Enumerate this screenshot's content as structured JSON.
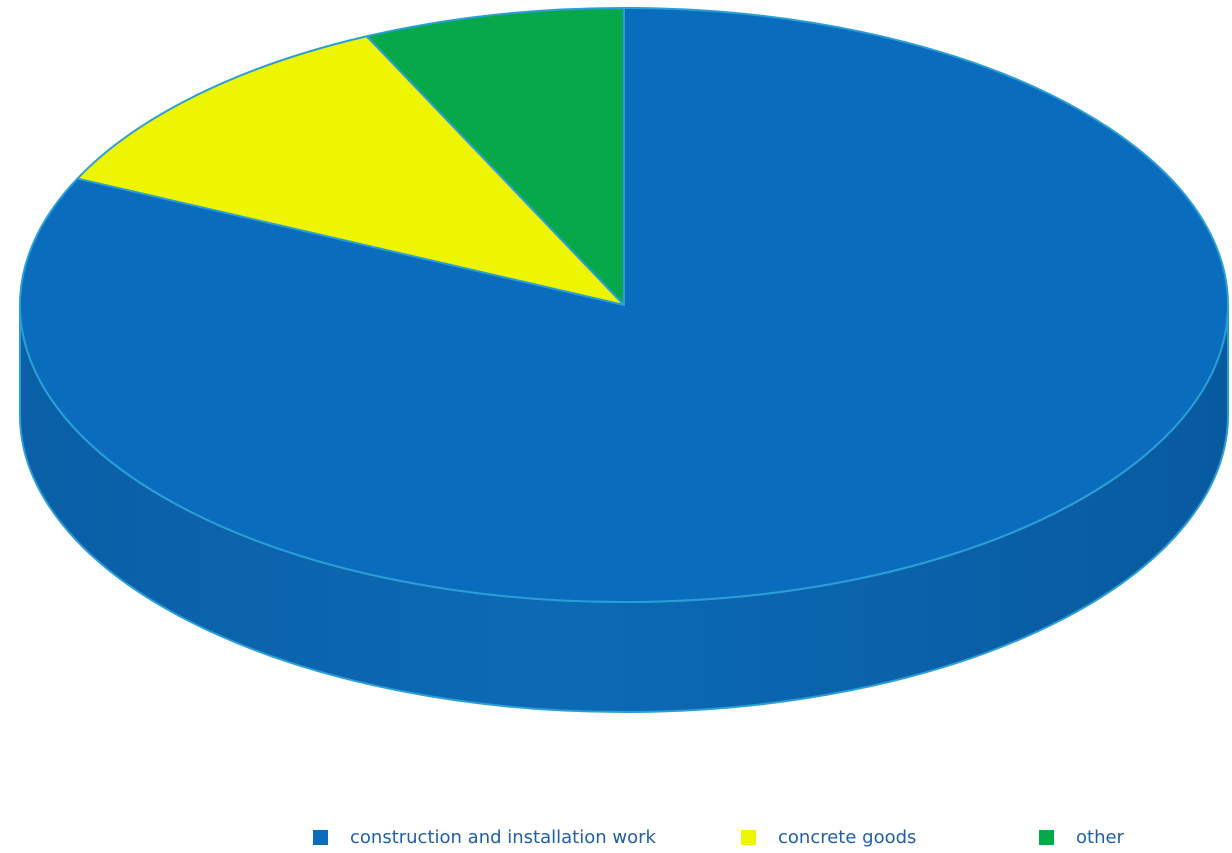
{
  "chart_data": {
    "type": "pie",
    "three_d": true,
    "title": "",
    "slices": [
      {
        "label": "construction and installation work",
        "value": 82,
        "color": "#0a6cbc"
      },
      {
        "label": "concrete goods",
        "value": 11,
        "color": "#eef500"
      },
      {
        "label": "other",
        "value": 7,
        "color": "#06a84a"
      }
    ],
    "legend": {
      "position": "bottom",
      "items": [
        {
          "label": "construction and installation work",
          "color": "#0a6cbc"
        },
        {
          "label": "concrete goods",
          "color": "#eef500"
        },
        {
          "label": "other",
          "color": "#06a84a"
        }
      ]
    }
  },
  "colors": {
    "edge": "#2a9ed6",
    "side_dark": "#055a9e",
    "side_mid": "#0b66b0",
    "legend_text": "#1f5fa8"
  }
}
